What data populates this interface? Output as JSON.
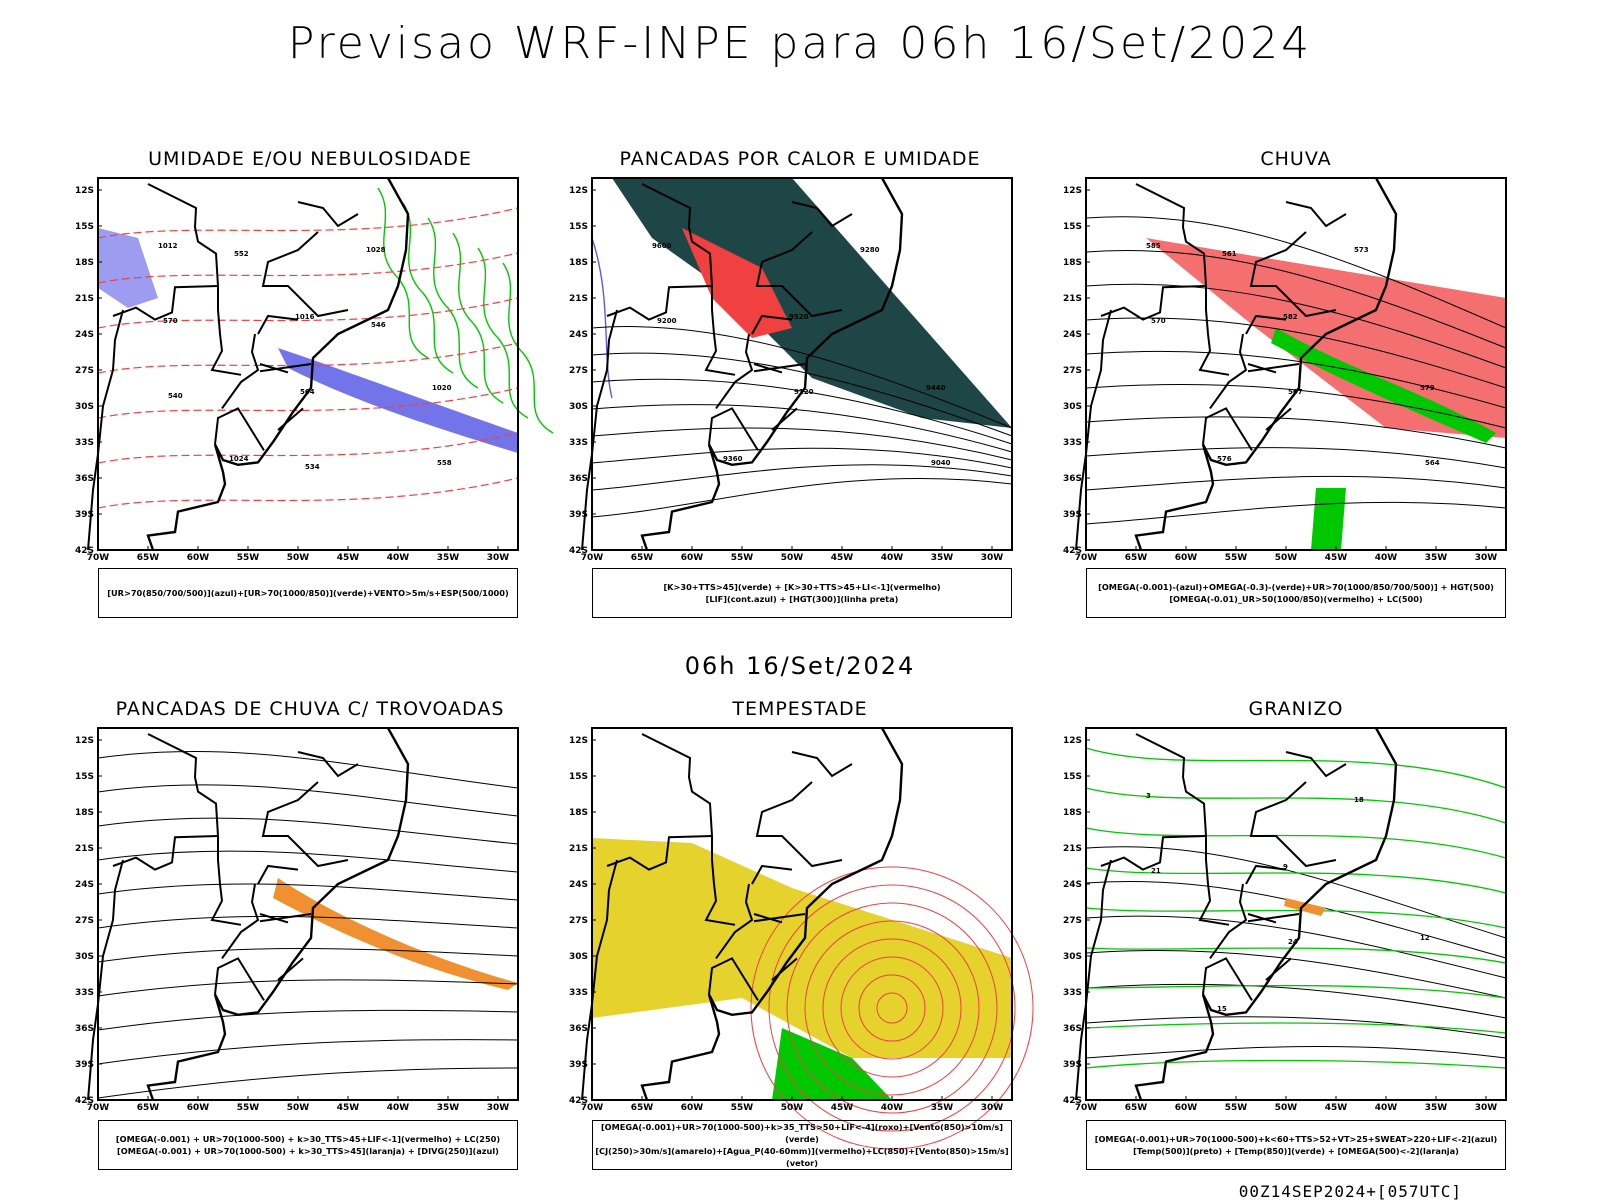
{
  "title": "Previsao WRF-INPE  para 06h 16/Set/2024",
  "mid_title": "06h 16/Set/2024",
  "footer": "00Z14SEP2024+[057UTC]",
  "lat_labels": [
    "12S",
    "15S",
    "18S",
    "21S",
    "24S",
    "27S",
    "30S",
    "33S",
    "36S",
    "39S",
    "42S"
  ],
  "lon_labels": [
    "70W",
    "65W",
    "60W",
    "55W",
    "50W",
    "45W",
    "40W",
    "35W",
    "30W"
  ],
  "panels": [
    {
      "title": "UMIDADE E/OU NEBULOSIDADE",
      "legend": [
        "[UR>70(850/700/500)](azul)+[UR>70(1000/850)](verde)+VENTO>5m/s+ESP(500/1000)"
      ],
      "contour_labels": [
        "1012",
        "1016",
        "1020",
        "1024",
        "1028",
        "570",
        "564",
        "558",
        "552",
        "546",
        "540",
        "534"
      ]
    },
    {
      "title": "PANCADAS POR CALOR E UMIDADE",
      "legend": [
        "[K>30+TTS>45](verde) + [K>30+TTS>45+LI<-1](vermelho)",
        "[LIF](cont.azul) + [HGT(300)](linha preta)"
      ],
      "contour_labels": [
        "9600",
        "9520",
        "9440",
        "9360",
        "9280",
        "9200",
        "9120",
        "9040"
      ]
    },
    {
      "title": "CHUVA",
      "legend": [
        "[OMEGA(-0.001)-(azul)+OMEGA(-0.3)-(verde)+UR>70(1000/850/700/500)] + HGT(500)",
        "[OMEGA(-0.01)_UR>50(1000/850)(vermelho) + LC(500)"
      ],
      "contour_labels": [
        "585",
        "582",
        "579",
        "576",
        "573",
        "570",
        "567",
        "564",
        "561"
      ]
    },
    {
      "title": "PANCADAS DE CHUVA C/ TROVOADAS",
      "legend": [
        "[OMEGA(-0.001) + UR>70(1000-500) + k>30_TTS>45+LIF<-1](vermelho) + LC(250)",
        "[OMEGA(-0.001) + UR>70(1000-500) + k>30_TTS>45](laranja) + [DIVG(250)](azul)"
      ],
      "contour_labels": []
    },
    {
      "title": "TEMPESTADE",
      "legend": [
        "[OMEGA(-0.001)+UR>70(1000-500)+k>35_TTS>50+LIF<-4](roxo)+[Vento(850)>10m/s](verde)",
        "[CJ(250)>30m/s](amarelo)+[Agua_P(40-60mm)](vermelho)+LC(850)+[Vento(850)>15m/s](vetor)"
      ],
      "contour_labels": []
    },
    {
      "title": "GRANIZO",
      "legend": [
        "[OMEGA(-0.001)+UR>70(1000-500)+k<60+TTS>52+VT>25+SWEAT>220+LIF<-2](azul)",
        "[Temp(500)](preto) + [Temp(850)](verde) + [OMEGA(500)<-2](laranja)"
      ],
      "contour_labels": [
        "3",
        "9",
        "12",
        "15",
        "18",
        "21",
        "24"
      ]
    }
  ],
  "colors": {
    "blue": "#5a5ae6",
    "green": "#00c800",
    "red": "#f04040",
    "dark": "#1e4646",
    "yellow": "#e6d22d",
    "orange": "#f09030"
  }
}
